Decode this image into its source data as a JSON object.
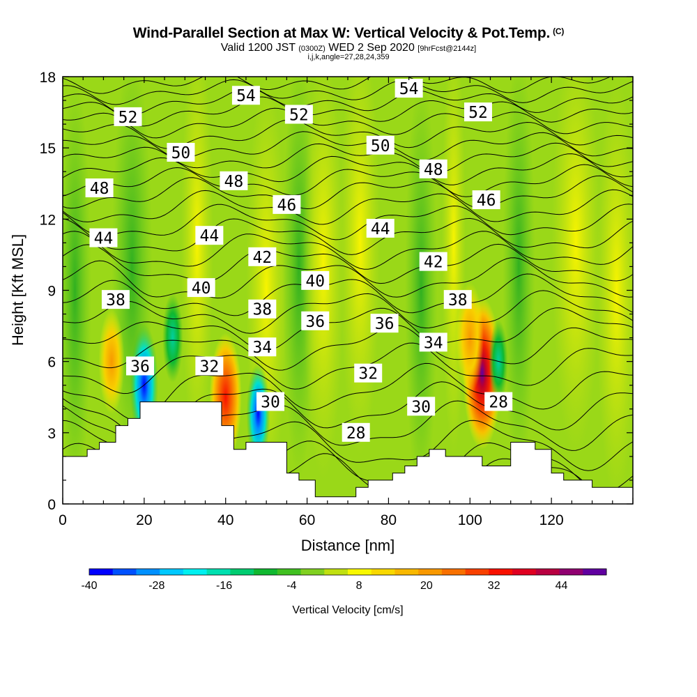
{
  "title": {
    "main": "Wind-Parallel Section at Max W: Vertical Velocity & Pot.Temp.",
    "copyright": "(C)",
    "valid_prefix": "Valid 1200 JST",
    "valid_utc": "(0300Z)",
    "valid_date": "WED 2 Sep 2020",
    "forecast": "[9hrFcst@2144z]",
    "indices": "i,j,k,angle=27,28,24,359"
  },
  "chart_data": {
    "type": "heatmap",
    "xlabel": "Distance [nm]",
    "ylabel": "Height [Kft MSL]",
    "xlim": [
      0,
      140
    ],
    "ylim": [
      0,
      18
    ],
    "x_ticks": [
      0,
      20,
      40,
      60,
      80,
      100,
      120
    ],
    "y_ticks": [
      0,
      3,
      6,
      9,
      12,
      15,
      18
    ],
    "colorbar": {
      "label": "Vertical Velocity [cm/s]",
      "min": -40,
      "max": 52,
      "step": 4,
      "tick_values": [
        -40,
        -28,
        -16,
        -4,
        8,
        20,
        32,
        44
      ],
      "colors": [
        "#0000ff",
        "#0050ff",
        "#0090ff",
        "#00c8ff",
        "#00f0f0",
        "#00e0b0",
        "#00cc70",
        "#10b830",
        "#40c020",
        "#80d020",
        "#c0e010",
        "#f8f800",
        "#f8d800",
        "#f8b800",
        "#f89800",
        "#f87000",
        "#f84000",
        "#f81000",
        "#e00020",
        "#b80040",
        "#900070",
        "#6000a0"
      ]
    },
    "terrain": [
      [
        0,
        2
      ],
      [
        6,
        2
      ],
      [
        6,
        2.3
      ],
      [
        9,
        2.3
      ],
      [
        9,
        2.6
      ],
      [
        13,
        2.6
      ],
      [
        13,
        3.3
      ],
      [
        16,
        3.3
      ],
      [
        16,
        3.6
      ],
      [
        19,
        3.6
      ],
      [
        19,
        4.3
      ],
      [
        39,
        4.3
      ],
      [
        39,
        3.3
      ],
      [
        42,
        3.3
      ],
      [
        42,
        2.3
      ],
      [
        45,
        2.3
      ],
      [
        45,
        2.6
      ],
      [
        55,
        2.6
      ],
      [
        55,
        1.3
      ],
      [
        58,
        1.3
      ],
      [
        58,
        1
      ],
      [
        62,
        1
      ],
      [
        62,
        0.3
      ],
      [
        72,
        0.3
      ],
      [
        72,
        0.7
      ],
      [
        75,
        0.7
      ],
      [
        75,
        1
      ],
      [
        81,
        1
      ],
      [
        81,
        1.3
      ],
      [
        84,
        1.3
      ],
      [
        84,
        1.6
      ],
      [
        87,
        1.6
      ],
      [
        87,
        2
      ],
      [
        90,
        2
      ],
      [
        90,
        2.3
      ],
      [
        94,
        2.3
      ],
      [
        94,
        2
      ],
      [
        103,
        2
      ],
      [
        103,
        1.6
      ],
      [
        110,
        1.6
      ],
      [
        110,
        2.6
      ],
      [
        116,
        2.6
      ],
      [
        116,
        2.3
      ],
      [
        120,
        2.3
      ],
      [
        120,
        1.3
      ],
      [
        123,
        1.3
      ],
      [
        123,
        1
      ],
      [
        130,
        1
      ],
      [
        130,
        0.7
      ],
      [
        140,
        0.7
      ]
    ],
    "isentropes_K": [
      28,
      29,
      30,
      31,
      32,
      33,
      34,
      35,
      36,
      37,
      38,
      39,
      40,
      41,
      42,
      43,
      44,
      45,
      46,
      47,
      48,
      49,
      50,
      51,
      52,
      53,
      54,
      55
    ],
    "updraft_cores": [
      {
        "x": 103,
        "y": 5.5,
        "value": 52
      },
      {
        "x": 40,
        "y": 4.5,
        "value": 36
      },
      {
        "x": 12,
        "y": 6,
        "value": 20
      },
      {
        "x": 100,
        "y": 7,
        "value": 24
      }
    ],
    "downdraft_cores": [
      {
        "x": 20,
        "y": 5,
        "value": -40
      },
      {
        "x": 27,
        "y": 7,
        "value": -20
      },
      {
        "x": 48,
        "y": 3.8,
        "value": -28
      },
      {
        "x": 107,
        "y": 6,
        "value": -16
      }
    ],
    "contour_labels": [
      {
        "text": "54",
        "x": 45,
        "y": 17.2
      },
      {
        "text": "54",
        "x": 85,
        "y": 17.5
      },
      {
        "text": "52",
        "x": 16,
        "y": 16.3
      },
      {
        "text": "52",
        "x": 58,
        "y": 16.4
      },
      {
        "text": "52",
        "x": 102,
        "y": 16.5
      },
      {
        "text": "50",
        "x": 29,
        "y": 14.8
      },
      {
        "text": "50",
        "x": 78,
        "y": 15.1
      },
      {
        "text": "48",
        "x": 9,
        "y": 13.3
      },
      {
        "text": "48",
        "x": 42,
        "y": 13.6
      },
      {
        "text": "48",
        "x": 91,
        "y": 14.1
      },
      {
        "text": "46",
        "x": 55,
        "y": 12.6
      },
      {
        "text": "46",
        "x": 104,
        "y": 12.8
      },
      {
        "text": "44",
        "x": 10,
        "y": 11.2
      },
      {
        "text": "44",
        "x": 36,
        "y": 11.3
      },
      {
        "text": "44",
        "x": 78,
        "y": 11.6
      },
      {
        "text": "42",
        "x": 49,
        "y": 10.4
      },
      {
        "text": "42",
        "x": 91,
        "y": 10.2
      },
      {
        "text": "40",
        "x": 34,
        "y": 9.1
      },
      {
        "text": "40",
        "x": 62,
        "y": 9.4
      },
      {
        "text": "38",
        "x": 13,
        "y": 8.6
      },
      {
        "text": "38",
        "x": 49,
        "y": 8.2
      },
      {
        "text": "38",
        "x": 97,
        "y": 8.6
      },
      {
        "text": "36",
        "x": 62,
        "y": 7.7
      },
      {
        "text": "36",
        "x": 79,
        "y": 7.6
      },
      {
        "text": "36",
        "x": 19,
        "y": 5.8
      },
      {
        "text": "34",
        "x": 49,
        "y": 6.6
      },
      {
        "text": "34",
        "x": 91,
        "y": 6.8
      },
      {
        "text": "32",
        "x": 36,
        "y": 5.8
      },
      {
        "text": "32",
        "x": 75,
        "y": 5.5
      },
      {
        "text": "30",
        "x": 51,
        "y": 4.3
      },
      {
        "text": "30",
        "x": 88,
        "y": 4.1
      },
      {
        "text": "28",
        "x": 72,
        "y": 3
      },
      {
        "text": "28",
        "x": 107,
        "y": 4.3
      }
    ]
  }
}
